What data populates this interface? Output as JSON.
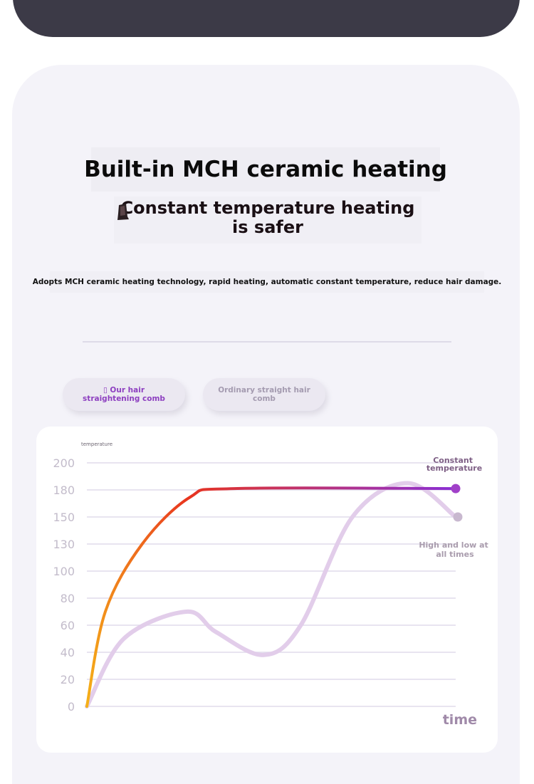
{
  "header": {
    "title": "Built-in MCH ceramic heating",
    "subtitle": "Constant temperature heating is safer",
    "description": "Adopts MCH ceramic heating technology, rapid heating, automatic constant temperature, reduce hair damage."
  },
  "tabs": [
    {
      "label": "▯ Our hair straightening comb",
      "active": true
    },
    {
      "label": "Ordinary straight hair comb",
      "active": false
    }
  ],
  "chart_data": {
    "type": "line",
    "xlabel": "time",
    "ylabel": "temperature",
    "yticks": [
      0,
      20,
      40,
      60,
      80,
      100,
      130,
      150,
      180,
      200
    ],
    "ylim": [
      0,
      200
    ],
    "grid": true,
    "series": [
      {
        "name": "Constant temperature",
        "color_start": "#f5b018",
        "color_mid": "#e8341e",
        "color_end": "#8a2fd6",
        "points": [
          [
            0,
            0
          ],
          [
            0.05,
            70
          ],
          [
            0.15,
            130
          ],
          [
            0.28,
            172
          ],
          [
            0.4,
            181
          ],
          [
            1.0,
            181
          ]
        ]
      },
      {
        "name": "High and low at all times",
        "color": "#e2cdea",
        "points": [
          [
            0,
            0
          ],
          [
            0.1,
            50
          ],
          [
            0.27,
            70
          ],
          [
            0.35,
            55
          ],
          [
            0.48,
            38
          ],
          [
            0.58,
            60
          ],
          [
            0.72,
            150
          ],
          [
            0.87,
            185
          ],
          [
            1.0,
            150
          ]
        ]
      }
    ]
  }
}
